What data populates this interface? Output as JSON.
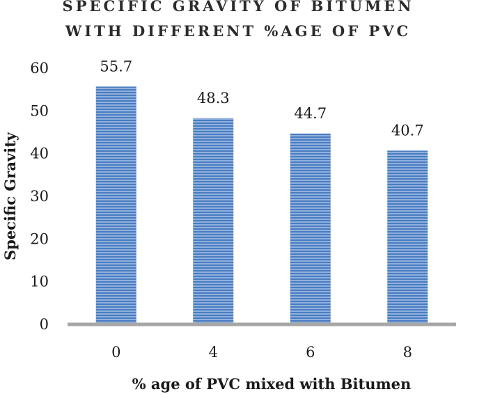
{
  "chart_data": {
    "type": "bar",
    "title_lines": [
      "SPECIFIC GRAVITY OF BITUMEN",
      "WITH DIFFERENT %AGE OF PVC"
    ],
    "categories": [
      "0",
      "4",
      "6",
      "8"
    ],
    "values": [
      55.7,
      48.3,
      44.7,
      40.7
    ],
    "data_labels": [
      "55.7",
      "48.3",
      "44.7",
      "40.7"
    ],
    "xlabel": "% age of PVC mixed with Bitumen",
    "ylabel": "Specific Gravity",
    "ylim": [
      0,
      60
    ],
    "yticks": [
      "0",
      "10",
      "20",
      "30",
      "40",
      "50",
      "60"
    ],
    "grid": false,
    "legend": "none",
    "colors": {
      "bar": "#4f81bd",
      "bar_stripe": "#7fa6d6",
      "axis": "#a6a6a6"
    }
  }
}
